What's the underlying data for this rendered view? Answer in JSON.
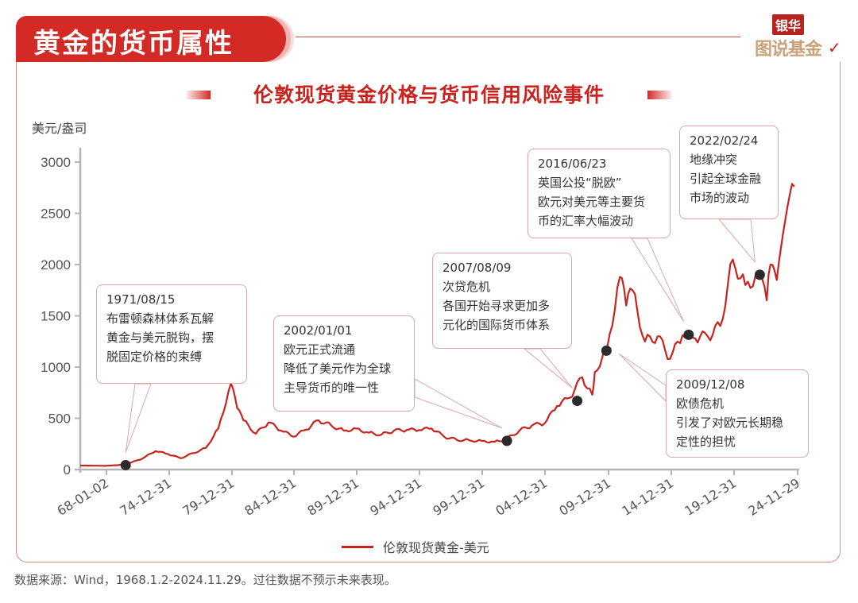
{
  "header": {
    "section_title": "黄金的货币属性",
    "logo_top": "银华",
    "logo_bottom": "图说基金",
    "logo_check": "✓"
  },
  "chart_data": {
    "type": "line",
    "title": "伦敦现货黄金价格与货币信用风险事件",
    "xlabel": "",
    "ylabel": "美元/盎司",
    "ylim": [
      0,
      3000
    ],
    "y_ticks": [
      "0",
      "500",
      "1000",
      "1500",
      "2000",
      "2500",
      "3000"
    ],
    "x_tick_labels": [
      "68-01-02",
      "74-12-31",
      "79-12-31",
      "84-12-31",
      "89-12-31",
      "94-12-31",
      "99-12-31",
      "04-12-31",
      "09-12-31",
      "14-12-31",
      "19-12-31",
      "24-11-29"
    ],
    "grid": false,
    "legend_position": "bottom",
    "series": [
      {
        "name": "伦敦现货黄金-美元",
        "color": "#c8231f",
        "points": [
          [
            "1968",
            39
          ],
          [
            "1970",
            36
          ],
          [
            "1971",
            43
          ],
          [
            "1972",
            65
          ],
          [
            "1973",
            110
          ],
          [
            "1974",
            180
          ],
          [
            "1975",
            150
          ],
          [
            "1976",
            110
          ],
          [
            "1977",
            160
          ],
          [
            "1978",
            210
          ],
          [
            "1979",
            400
          ],
          [
            "1980",
            840
          ],
          [
            "1980.5",
            600
          ],
          [
            "1981",
            480
          ],
          [
            "1982",
            350
          ],
          [
            "1983",
            460
          ],
          [
            "1984",
            380
          ],
          [
            "1985",
            320
          ],
          [
            "1986",
            390
          ],
          [
            "1987",
            480
          ],
          [
            "1988",
            430
          ],
          [
            "1989",
            380
          ],
          [
            "1990",
            400
          ],
          [
            "1991",
            360
          ],
          [
            "1992",
            340
          ],
          [
            "1993",
            380
          ],
          [
            "1994",
            385
          ],
          [
            "1995",
            385
          ],
          [
            "1996",
            400
          ],
          [
            "1997",
            320
          ],
          [
            "1998",
            290
          ],
          [
            "1999",
            285
          ],
          [
            "2000",
            280
          ],
          [
            "2001",
            270
          ],
          [
            "2002",
            300
          ],
          [
            "2003",
            380
          ],
          [
            "2004",
            430
          ],
          [
            "2005",
            450
          ],
          [
            "2006",
            620
          ],
          [
            "2007",
            700
          ],
          [
            "2008",
            900
          ],
          [
            "2008.8",
            730
          ],
          [
            "2009",
            950
          ],
          [
            "2010",
            1200
          ],
          [
            "2011",
            1880
          ],
          [
            "2011.5",
            1600
          ],
          [
            "2012",
            1750
          ],
          [
            "2013",
            1250
          ],
          [
            "2014",
            1300
          ],
          [
            "2015",
            1080
          ],
          [
            "2016",
            1310
          ],
          [
            "2017",
            1280
          ],
          [
            "2018",
            1300
          ],
          [
            "2019",
            1400
          ],
          [
            "2020",
            2050
          ],
          [
            "2021",
            1800
          ],
          [
            "2022",
            1900
          ],
          [
            "2022.7",
            1650
          ],
          [
            "2023",
            2000
          ],
          [
            "2023.5",
            1850
          ],
          [
            "2024",
            2300
          ],
          [
            "2024.9",
            2760
          ]
        ]
      }
    ],
    "annotations": [
      {
        "date": "1971/08/15",
        "lines": [
          "布雷顿森林体系瓦解",
          "黄金与美元脱钩，摆",
          "脱固定价格的束缚"
        ],
        "value": 43
      },
      {
        "date": "2002/01/01",
        "lines": [
          "欧元正式流通",
          "降低了美元作为全球",
          "主导货币的唯一性"
        ],
        "value": 280
      },
      {
        "date": "2007/08/09",
        "lines": [
          "次贷危机",
          "各国开始寻求更加多",
          "元化的国际货币体系"
        ],
        "value": 670
      },
      {
        "date": "2009/12/08",
        "lines": [
          "欧债危机",
          "引发了对欧元长期稳",
          "定性的担忧"
        ],
        "value": 1160
      },
      {
        "date": "2016/06/23",
        "lines": [
          "英国公投“脱欧”",
          "欧元对美元等主要货",
          "币的汇率大幅波动"
        ],
        "value": 1315
      },
      {
        "date": "2022/02/24",
        "lines": [
          "地缘冲突",
          "引起全球金融",
          "市场的波动"
        ],
        "value": 1900
      }
    ]
  },
  "legend": {
    "label": "伦敦现货黄金-美元"
  },
  "footer": {
    "source": "数据来源：Wind，1968.1.2-2024.11.29。过往数据不预示未来表现。"
  }
}
